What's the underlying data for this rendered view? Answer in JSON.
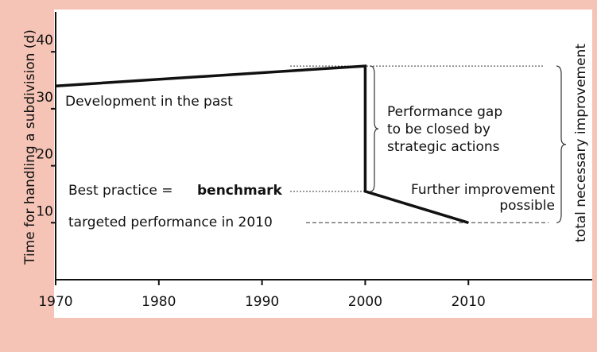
{
  "chart_data": {
    "type": "line",
    "y_label": "Time for handling a subdivision (d)",
    "x": [
      1970,
      2000,
      2000,
      2010
    ],
    "values": [
      34,
      37.5,
      15.5,
      10
    ],
    "color": "#111111",
    "xlim": [
      1970,
      2022
    ],
    "xticks": [
      1970,
      1980,
      1990,
      2000,
      2010
    ],
    "ylim": [
      0,
      47
    ],
    "yticks": [
      10,
      20,
      30,
      40
    ],
    "grid": false,
    "annotations": {
      "past": "Development in the past",
      "gap": [
        "Performance gap",
        "to be closed by",
        "strategic actions"
      ],
      "benchmark_prefix": "Best practice =",
      "benchmark": "benchmark",
      "further": [
        "Further improvement",
        "possible"
      ],
      "target": "targeted performance in 2010",
      "total": "total necessary improvement"
    }
  }
}
